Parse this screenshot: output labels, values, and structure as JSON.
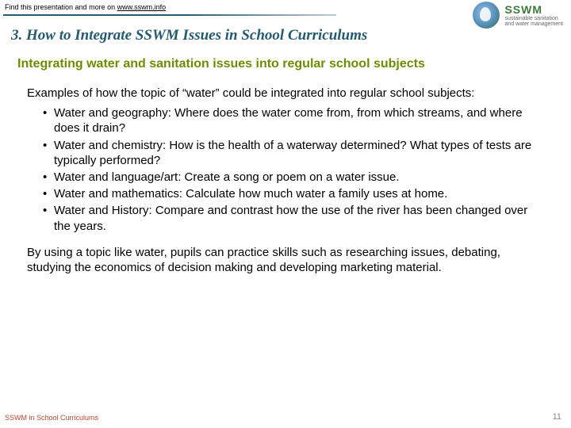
{
  "header": {
    "find_prefix": "Find this presentation and more on ",
    "find_link": "www.sswm.info",
    "logo_acronym": "SSWM",
    "logo_sub1": "sustainable sanitation",
    "logo_sub2": "and water management"
  },
  "title": "3. How to Integrate SSWM Issues in School Curriculums",
  "subheading": "Integrating water and sanitation issues into regular school subjects",
  "intro": "Examples of how the topic of “water” could be integrated into regular school subjects:",
  "bullets": [
    "Water and geography: Where does the water come from, from which streams, and where does it drain?",
    "Water and chemistry: How is the health of a waterway determined? What types of tests are typically performed?",
    "Water and language/art: Create a song or poem on a water issue.",
    "Water and mathematics: Calculate how much water a family uses at home.",
    "Water and History: Compare and contrast how the use of the river has been changed over the years."
  ],
  "closing": "By using a topic like water, pupils can practice skills such as researching issues, debating, studying the economics of decision making and developing marketing material.",
  "footer": {
    "left": "SSWM in School Curriculums",
    "page": "11"
  },
  "colors": {
    "title": "#235a72",
    "subheading": "#6b8e00",
    "footer_left": "#c04a2b",
    "page_num": "#888888"
  }
}
